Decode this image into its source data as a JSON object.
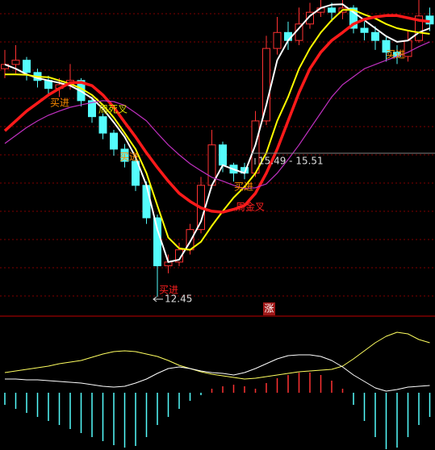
{
  "chart_data": [
    {
      "type": "candlestick",
      "up_color": "#ff3232",
      "down_color": "#54fcfc",
      "ylim": [
        12.04,
        18.76
      ],
      "open": [
        17.3,
        17.39,
        17.48,
        17.22,
        17.05,
        16.88,
        16.96,
        17.05,
        16.62,
        16.28,
        15.93,
        15.59,
        15.33,
        14.82,
        14.13,
        13.11,
        13.19,
        13.45,
        13.88,
        14.82,
        15.68,
        15.25,
        15.2,
        15.08,
        16.19,
        17.73,
        18.07,
        17.9,
        18.25,
        18.5,
        18.59,
        18.5,
        18.59,
        18.16,
        18.07,
        17.9,
        17.65,
        17.56,
        17.9,
        18.42
      ],
      "close": [
        17.39,
        17.48,
        17.22,
        17.05,
        16.88,
        16.96,
        17.05,
        16.62,
        16.28,
        15.93,
        15.59,
        15.33,
        14.82,
        14.13,
        13.11,
        13.19,
        13.45,
        13.88,
        14.82,
        15.68,
        15.25,
        15.08,
        15.08,
        16.19,
        17.73,
        18.07,
        17.9,
        18.25,
        18.5,
        18.59,
        18.5,
        18.59,
        18.16,
        18.07,
        17.9,
        17.65,
        17.56,
        17.9,
        18.42,
        18.25
      ],
      "high": [
        17.7,
        17.8,
        17.55,
        17.3,
        17.15,
        17.1,
        17.4,
        17.1,
        16.7,
        16.35,
        16.0,
        15.7,
        15.4,
        14.9,
        14.2,
        13.35,
        13.6,
        14.0,
        15.0,
        16.0,
        15.75,
        15.3,
        15.3,
        16.4,
        18.0,
        18.4,
        18.3,
        18.6,
        18.7,
        18.76,
        18.7,
        18.76,
        18.65,
        18.3,
        18.2,
        18.0,
        17.8,
        18.1,
        18.76,
        18.6
      ],
      "low": [
        17.1,
        17.2,
        17.05,
        16.9,
        16.75,
        16.7,
        16.85,
        16.5,
        16.15,
        15.8,
        15.45,
        15.2,
        14.7,
        14.0,
        12.45,
        12.95,
        13.1,
        13.35,
        13.8,
        14.75,
        15.1,
        14.9,
        14.95,
        15.0,
        16.1,
        17.6,
        17.7,
        17.8,
        18.15,
        18.4,
        18.3,
        18.35,
        18.05,
        17.9,
        17.7,
        17.45,
        17.4,
        17.45,
        17.85,
        18.1
      ],
      "series": [
        {
          "color": "#ffffff",
          "line_width": 2,
          "values": [
            17.39,
            17.3,
            17.18,
            17.1,
            17.05,
            17.0,
            16.94,
            16.82,
            16.67,
            16.45,
            16.16,
            15.85,
            15.42,
            14.82,
            13.88,
            13.19,
            13.24,
            13.62,
            14.05,
            14.82,
            15.25,
            15.16,
            15.08,
            15.68,
            16.53,
            17.48,
            17.9,
            18.16,
            18.42,
            18.59,
            18.66,
            18.67,
            18.5,
            18.33,
            18.16,
            17.99,
            17.87,
            17.9,
            18.07,
            18.16
          ]
        },
        {
          "color": "#ffff00",
          "line_width": 2,
          "values": [
            17.18,
            17.18,
            17.17,
            17.13,
            17.12,
            17.05,
            16.98,
            16.88,
            16.74,
            16.53,
            16.26,
            15.93,
            15.59,
            15.08,
            14.39,
            13.71,
            13.48,
            13.45,
            13.62,
            13.96,
            14.27,
            14.56,
            14.79,
            15.08,
            15.51,
            16.19,
            16.7,
            17.3,
            17.73,
            18.07,
            18.33,
            18.55,
            18.55,
            18.45,
            18.37,
            18.25,
            18.16,
            18.11,
            18.07,
            18.04
          ]
        },
        {
          "color": "#ff1a1a",
          "line_width": 3.5,
          "values": [
            15.98,
            16.19,
            16.4,
            16.57,
            16.74,
            16.88,
            17.0,
            17.01,
            16.94,
            16.74,
            16.48,
            16.16,
            15.85,
            15.51,
            15.2,
            14.91,
            14.65,
            14.48,
            14.34,
            14.27,
            14.25,
            14.31,
            14.39,
            14.65,
            15.08,
            15.59,
            16.19,
            16.79,
            17.3,
            17.65,
            17.9,
            18.07,
            18.25,
            18.35,
            18.4,
            18.43,
            18.43,
            18.38,
            18.33,
            18.3
          ]
        },
        {
          "color": "#c030c0",
          "line_width": 1.2,
          "values": [
            15.71,
            15.88,
            16.05,
            16.19,
            16.31,
            16.4,
            16.48,
            16.53,
            16.58,
            16.62,
            16.6,
            16.52,
            16.36,
            16.19,
            15.93,
            15.68,
            15.47,
            15.28,
            15.13,
            14.99,
            14.91,
            14.82,
            14.75,
            14.77,
            14.85,
            15.08,
            15.37,
            15.68,
            16.02,
            16.36,
            16.7,
            16.96,
            17.13,
            17.3,
            17.39,
            17.48,
            17.56,
            17.65,
            17.77,
            17.87
          ]
        }
      ],
      "annotations": [
        {
          "text": "买进",
          "color": "#ff8c00"
        },
        {
          "text": "周死叉",
          "color": "#d8d800"
        },
        {
          "text": "买进",
          "color": "#ff8c00"
        },
        {
          "text": "买进",
          "color": "#ff8c00"
        },
        {
          "text": "周金叉",
          "color": "#ff2020"
        },
        {
          "text": "买进",
          "color": "#ff2020"
        },
        {
          "text": "买进",
          "color": "#ff8c00"
        }
      ],
      "low_label": 12.45,
      "range_label": "15.49 - 15.51",
      "badge": "涨"
    },
    {
      "type": "macd",
      "ylim": [
        -71,
        92
      ],
      "histogram": {
        "up_color": "#ff3232",
        "down_color": "#54fcfc",
        "values": [
          -15,
          -20,
          -25,
          -30,
          -35,
          -40,
          -45,
          -50,
          -55,
          -60,
          -65,
          -68,
          -66,
          -55,
          -40,
          -30,
          -20,
          -10,
          -3,
          5,
          8,
          10,
          8,
          5,
          12,
          18,
          22,
          25,
          25,
          22,
          15,
          5,
          -15,
          -35,
          -55,
          -70,
          -68,
          -55,
          -40,
          -30
        ]
      },
      "series": [
        {
          "color": "#ffff60",
          "line_width": 1,
          "values": [
            25,
            27,
            29,
            31,
            33,
            36,
            38,
            40,
            44,
            48,
            51,
            52,
            51,
            48,
            45,
            40,
            34,
            30,
            26,
            23,
            21,
            19,
            17,
            18,
            20,
            22,
            24,
            26,
            27,
            28,
            29,
            33,
            42,
            52,
            62,
            70,
            75,
            73,
            66,
            62
          ]
        },
        {
          "color": "#ffffff",
          "line_width": 1,
          "values": [
            17,
            17,
            16,
            16,
            15,
            14,
            13,
            12,
            10,
            8,
            7,
            8,
            12,
            17,
            24,
            30,
            32,
            30,
            27,
            25,
            24,
            22,
            25,
            30,
            36,
            42,
            46,
            47,
            47,
            45,
            40,
            32,
            22,
            14,
            6,
            2,
            4,
            7,
            8,
            9
          ]
        }
      ]
    }
  ]
}
